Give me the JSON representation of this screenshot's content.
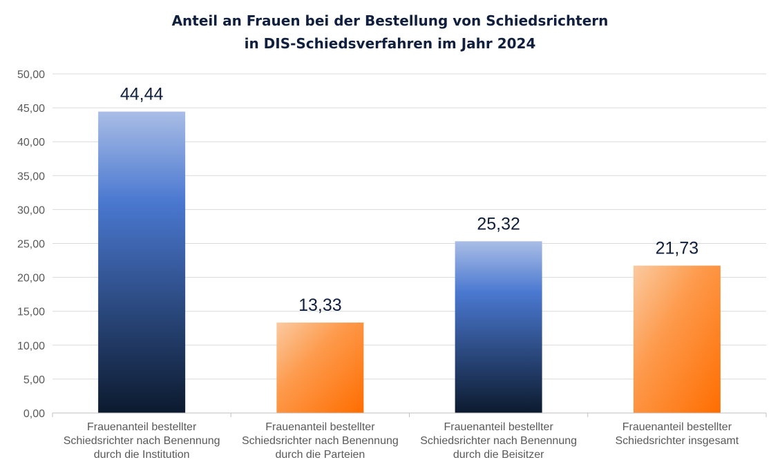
{
  "chart_data": {
    "type": "bar",
    "title": [
      "Anteil an Frauen bei der Bestellung von Schiedsrichtern",
      "in DIS-Schiedsverfahren im Jahr 2024"
    ],
    "categories": [
      [
        "Frauenanteil bestellter",
        "Schiedsrichter nach Benennung",
        "durch die Institution"
      ],
      [
        "Frauenanteil bestellter",
        "Schiedsrichter nach Benennung",
        "durch die Parteien"
      ],
      [
        "Frauenanteil bestellter",
        "Schiedsrichter nach Benennung",
        "durch die Beisitzer"
      ],
      [
        "Frauenanteil bestellter",
        "Schiedsrichter insgesamt"
      ]
    ],
    "values": [
      44.44,
      13.33,
      25.32,
      21.73
    ],
    "value_labels": [
      "44,44",
      "13,33",
      "25,32",
      "21,73"
    ],
    "bar_colors": [
      "blue",
      "orange",
      "blue",
      "orange"
    ],
    "ylim": [
      0,
      50
    ],
    "yticks": [
      "0,00",
      "5,00",
      "10,00",
      "15,00",
      "20,00",
      "25,00",
      "30,00",
      "35,00",
      "40,00",
      "45,00",
      "50,00"
    ],
    "grid": true,
    "legend": "none",
    "xlabel": "",
    "ylabel": ""
  },
  "colors": {
    "blue_top": "#a9bde6",
    "blue_mid": "#4a78d0",
    "blue_bottom": "#0c1a2e",
    "orange_top": "#fbcaa0",
    "orange_mid": "#fd9a4c",
    "orange_bottom": "#ff6d00",
    "grid": "#d9d9d9",
    "axis": "#bfbfbf"
  }
}
